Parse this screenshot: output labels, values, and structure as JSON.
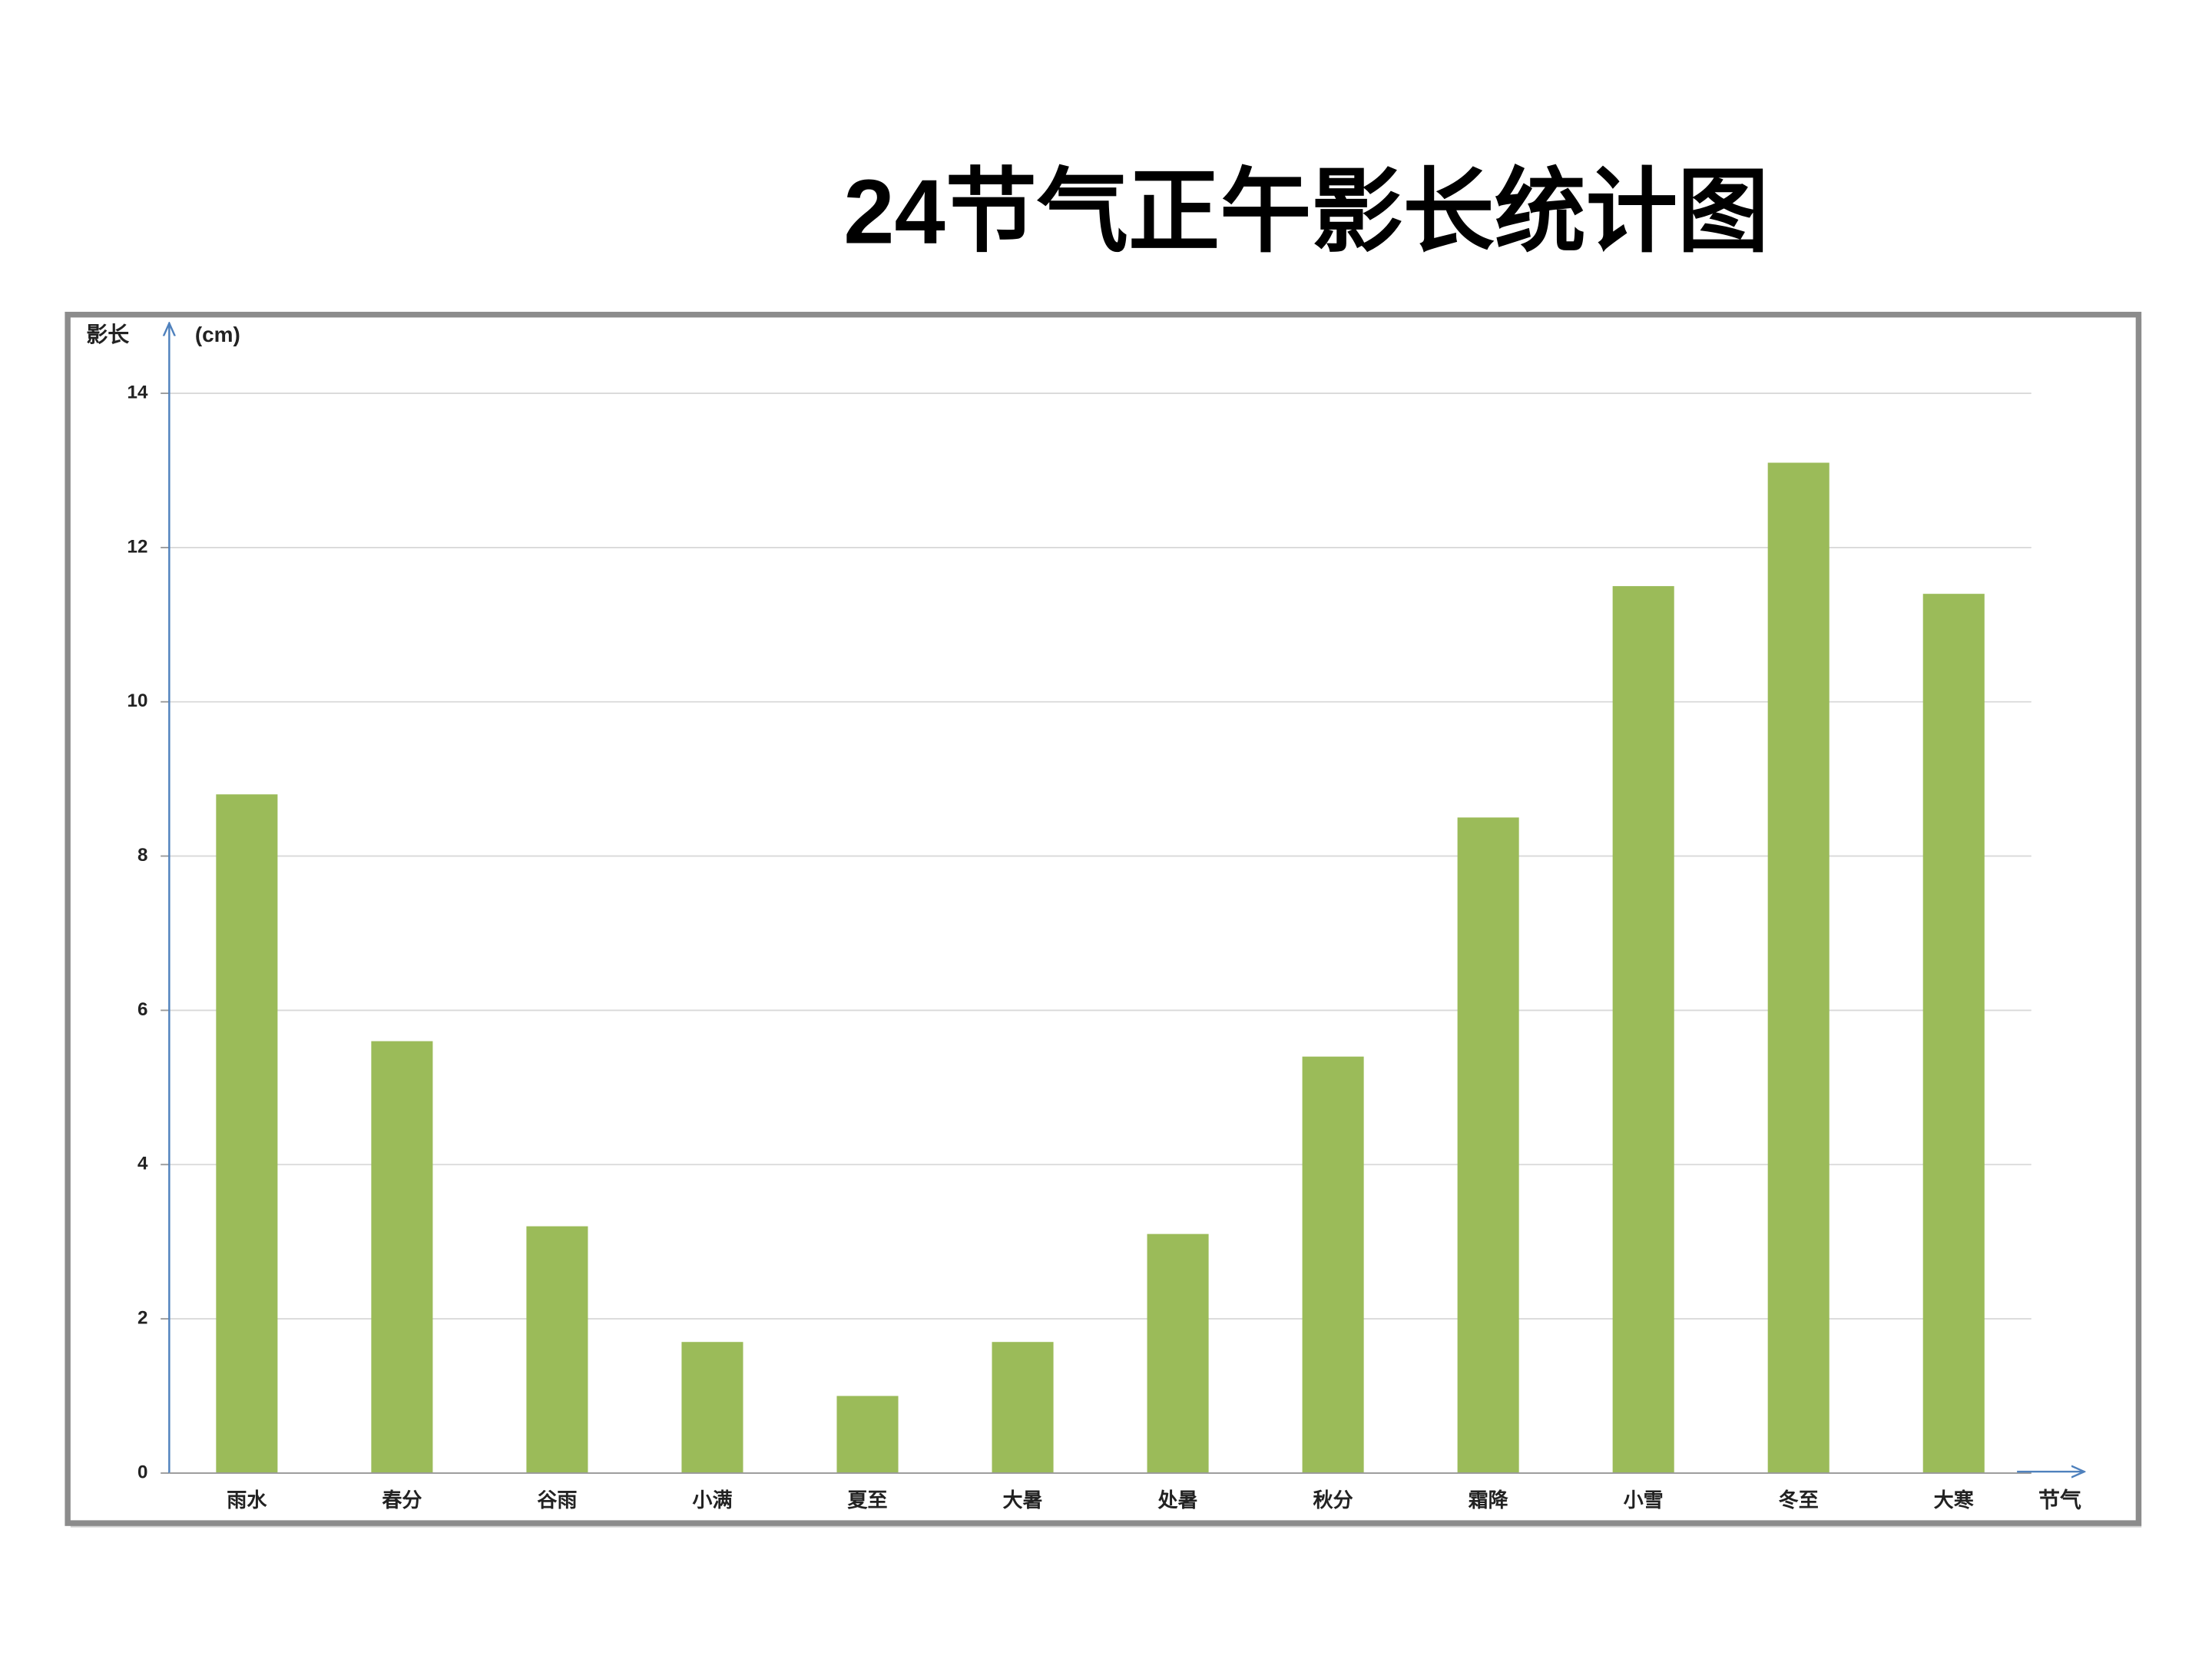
{
  "chart_data": {
    "type": "bar",
    "title": "24节气正午影长统计图",
    "y_label": "影长",
    "y_unit": "(cm)",
    "x_label": "节气",
    "categories": [
      "雨水",
      "春分",
      "谷雨",
      "小满",
      "夏至",
      "大暑",
      "处暑",
      "秋分",
      "霜降",
      "小雪",
      "冬至",
      "大寒"
    ],
    "values": [
      8.8,
      5.6,
      3.2,
      1.7,
      1.0,
      1.7,
      3.1,
      5.4,
      8.5,
      11.5,
      13.1,
      11.4
    ],
    "color": "#9bbb59",
    "ylim": [
      0,
      14
    ],
    "yticks": [
      0,
      2,
      4,
      6,
      8,
      10,
      12,
      14
    ],
    "grid": true
  }
}
